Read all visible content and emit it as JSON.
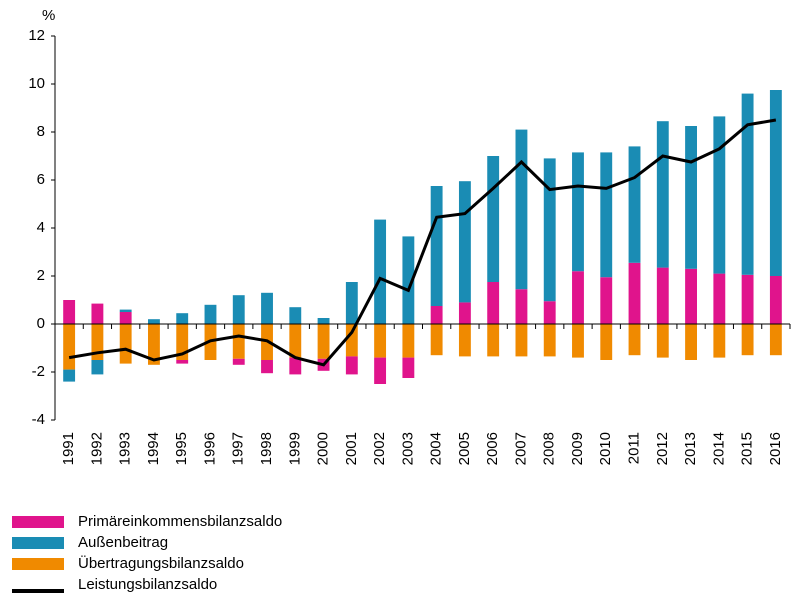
{
  "chart_data": {
    "type": "bar",
    "y_label": "%",
    "categories": [
      "1991",
      "1992",
      "1993",
      "1994",
      "1995",
      "1996",
      "1997",
      "1998",
      "1999",
      "2000",
      "2001",
      "2002",
      "2003",
      "2004",
      "2005",
      "2006",
      "2007",
      "2008",
      "2009",
      "2010",
      "2011",
      "2012",
      "2013",
      "2014",
      "2015",
      "2016"
    ],
    "series": [
      {
        "name": "Primäreinkommensbilanzsaldo",
        "type": "bar",
        "color": "#e0148c",
        "values": [
          1.0,
          0.85,
          0.5,
          0,
          -0.15,
          0,
          -0.25,
          -0.55,
          -0.7,
          -0.5,
          -0.75,
          -1.1,
          -0.85,
          0.75,
          0.9,
          1.75,
          1.45,
          0.95,
          2.2,
          1.95,
          2.55,
          2.35,
          2.3,
          2.1,
          2.05,
          2.0
        ]
      },
      {
        "name": "Außenbeitrag",
        "type": "bar",
        "color": "#1a8cb4",
        "values": [
          -0.5,
          -0.6,
          0.1,
          0.2,
          0.45,
          0.8,
          1.2,
          1.3,
          0.7,
          0.25,
          1.75,
          4.35,
          3.65,
          5.0,
          5.05,
          5.25,
          6.65,
          5.95,
          4.95,
          5.2,
          4.85,
          6.1,
          5.95,
          6.55,
          7.55,
          7.75
        ]
      },
      {
        "name": "Übertragungsbilanzsaldo",
        "type": "bar",
        "color": "#f08a00",
        "values": [
          -1.9,
          -1.5,
          -1.65,
          -1.7,
          -1.5,
          -1.5,
          -1.45,
          -1.5,
          -1.4,
          -1.45,
          -1.35,
          -1.4,
          -1.4,
          -1.3,
          -1.35,
          -1.35,
          -1.35,
          -1.35,
          -1.4,
          -1.5,
          -1.3,
          -1.4,
          -1.5,
          -1.4,
          -1.3,
          -1.3
        ]
      },
      {
        "name": "Leistungsbilanzsaldo",
        "type": "line",
        "color": "#000000",
        "values": [
          -1.4,
          -1.2,
          -1.05,
          -1.5,
          -1.25,
          -0.7,
          -0.5,
          -0.7,
          -1.4,
          -1.7,
          -0.35,
          1.9,
          1.4,
          4.45,
          4.6,
          5.65,
          6.75,
          5.6,
          5.75,
          5.65,
          6.1,
          7.0,
          6.75,
          7.3,
          8.3,
          8.5
        ]
      }
    ],
    "ylim": [
      -4,
      12
    ],
    "yticks": [
      -4,
      -2,
      0,
      2,
      4,
      6,
      8,
      10,
      12
    ]
  }
}
